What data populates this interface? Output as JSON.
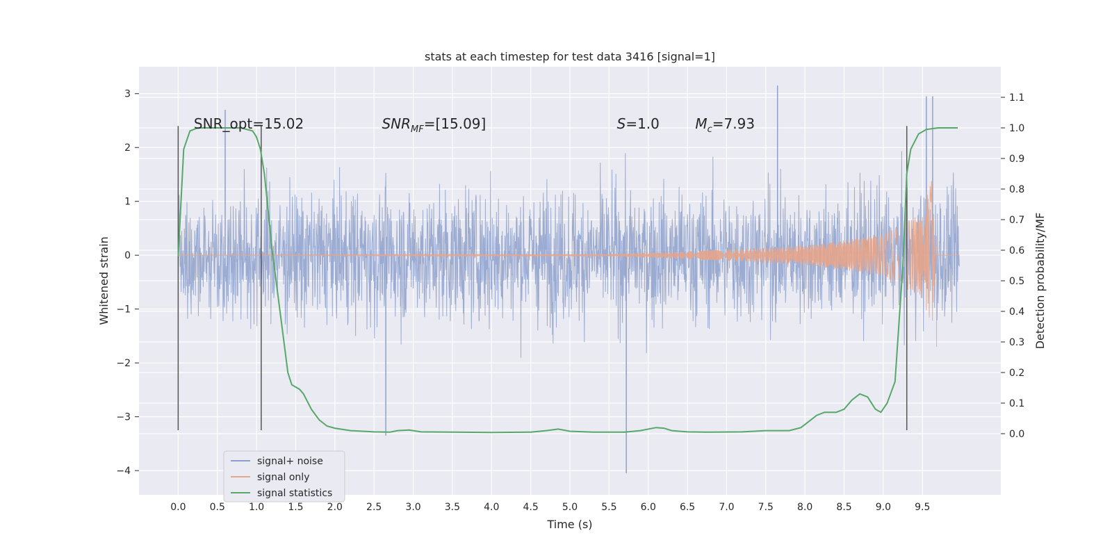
{
  "chart_data": {
    "type": "line",
    "title": "stats at each timestep for test data 3416 [signal=1]",
    "xlabel": "Time (s)",
    "ylabel": "Whitened strain",
    "ylabel_right": "Detection probability/MF",
    "xlim": [
      -0.5,
      10.5
    ],
    "ylim": [
      -4.45,
      3.5
    ],
    "ylim_right": [
      -0.2,
      1.2
    ],
    "x_ticks": [
      "0.0",
      "0.5",
      "1.0",
      "1.5",
      "2.0",
      "2.5",
      "3.0",
      "3.5",
      "4.0",
      "4.5",
      "5.0",
      "5.5",
      "6.0",
      "6.5",
      "7.0",
      "7.5",
      "8.0",
      "8.5",
      "9.0",
      "9.5"
    ],
    "y_ticks": [
      "−4",
      "−3",
      "−2",
      "−1",
      "0",
      "1",
      "2",
      "3"
    ],
    "y_ticks_right": [
      "0.0",
      "0.1",
      "0.2",
      "0.3",
      "0.4",
      "0.5",
      "0.6",
      "0.7",
      "0.8",
      "0.9",
      "1.0",
      "1.1"
    ],
    "grid": true,
    "legend_position": "lower-left",
    "series": [
      {
        "name": "signal+ noise",
        "color": "#8da0cb",
        "x_range": [
          0.0,
          9.97
        ],
        "y_typical_band": [
          -1.3,
          1.3
        ],
        "y_extremes": [
          -4.05,
          3.15
        ],
        "spikes": [
          [
            2.65,
            -3.35
          ],
          [
            5.72,
            -4.05
          ],
          [
            7.65,
            3.15
          ],
          [
            9.55,
            2.95
          ],
          [
            9.63,
            2.95
          ],
          [
            0.6,
            2.7
          ]
        ]
      },
      {
        "name": "signal only",
        "color": "#e5a58b",
        "x_range": [
          0.0,
          9.68
        ],
        "description_points": [
          [
            0.0,
            0.0
          ],
          [
            5.5,
            0.02
          ],
          [
            7.0,
            0.1
          ],
          [
            8.0,
            0.18
          ],
          [
            9.0,
            0.38
          ],
          [
            9.5,
            0.8
          ],
          [
            9.62,
            1.4
          ],
          [
            9.68,
            0.0
          ]
        ]
      },
      {
        "name": "signal statistics",
        "color": "#55a868",
        "axis": "right",
        "x": [
          0.0,
          0.07,
          0.15,
          0.25,
          0.4,
          0.6,
          0.8,
          0.95,
          1.0,
          1.05,
          1.1,
          1.2,
          1.3,
          1.4,
          1.45,
          1.55,
          1.6,
          1.7,
          1.8,
          1.9,
          2.0,
          2.2,
          2.5,
          2.7,
          2.8,
          2.95,
          3.1,
          3.5,
          4.0,
          4.5,
          4.7,
          4.85,
          5.0,
          5.3,
          5.7,
          5.9,
          6.1,
          6.2,
          6.3,
          6.5,
          6.8,
          7.2,
          7.5,
          7.8,
          7.95,
          8.05,
          8.15,
          8.25,
          8.4,
          8.5,
          8.6,
          8.7,
          8.8,
          8.9,
          8.97,
          9.05,
          9.15,
          9.25,
          9.3,
          9.35,
          9.45,
          9.55,
          9.7,
          9.95
        ],
        "y": [
          0.58,
          0.93,
          0.99,
          1.0,
          1.0,
          1.0,
          1.0,
          0.99,
          0.97,
          0.93,
          0.85,
          0.6,
          0.4,
          0.2,
          0.16,
          0.145,
          0.13,
          0.08,
          0.045,
          0.025,
          0.018,
          0.01,
          0.006,
          0.005,
          0.01,
          0.012,
          0.006,
          0.005,
          0.004,
          0.005,
          0.01,
          0.015,
          0.008,
          0.005,
          0.005,
          0.01,
          0.02,
          0.018,
          0.01,
          0.006,
          0.005,
          0.006,
          0.01,
          0.01,
          0.02,
          0.04,
          0.06,
          0.07,
          0.07,
          0.08,
          0.11,
          0.13,
          0.12,
          0.08,
          0.07,
          0.1,
          0.17,
          0.55,
          0.85,
          0.93,
          0.98,
          0.995,
          1.0,
          1.0
        ]
      }
    ],
    "vlines": [
      0.0,
      1.06,
      9.3
    ],
    "annotations": [
      {
        "text": "SNR_opt=15.02",
        "x": 0.2,
        "y": 2.35
      },
      {
        "base": "SNR",
        "sub": "MF",
        "after": "=[15.09]",
        "x": 2.6,
        "y": 2.35
      },
      {
        "base": "S",
        "after": "=1.0",
        "x": 5.6,
        "y": 2.35
      },
      {
        "base": "M",
        "sub": "c",
        "after": "=7.93",
        "x": 6.6,
        "y": 2.35
      }
    ]
  }
}
